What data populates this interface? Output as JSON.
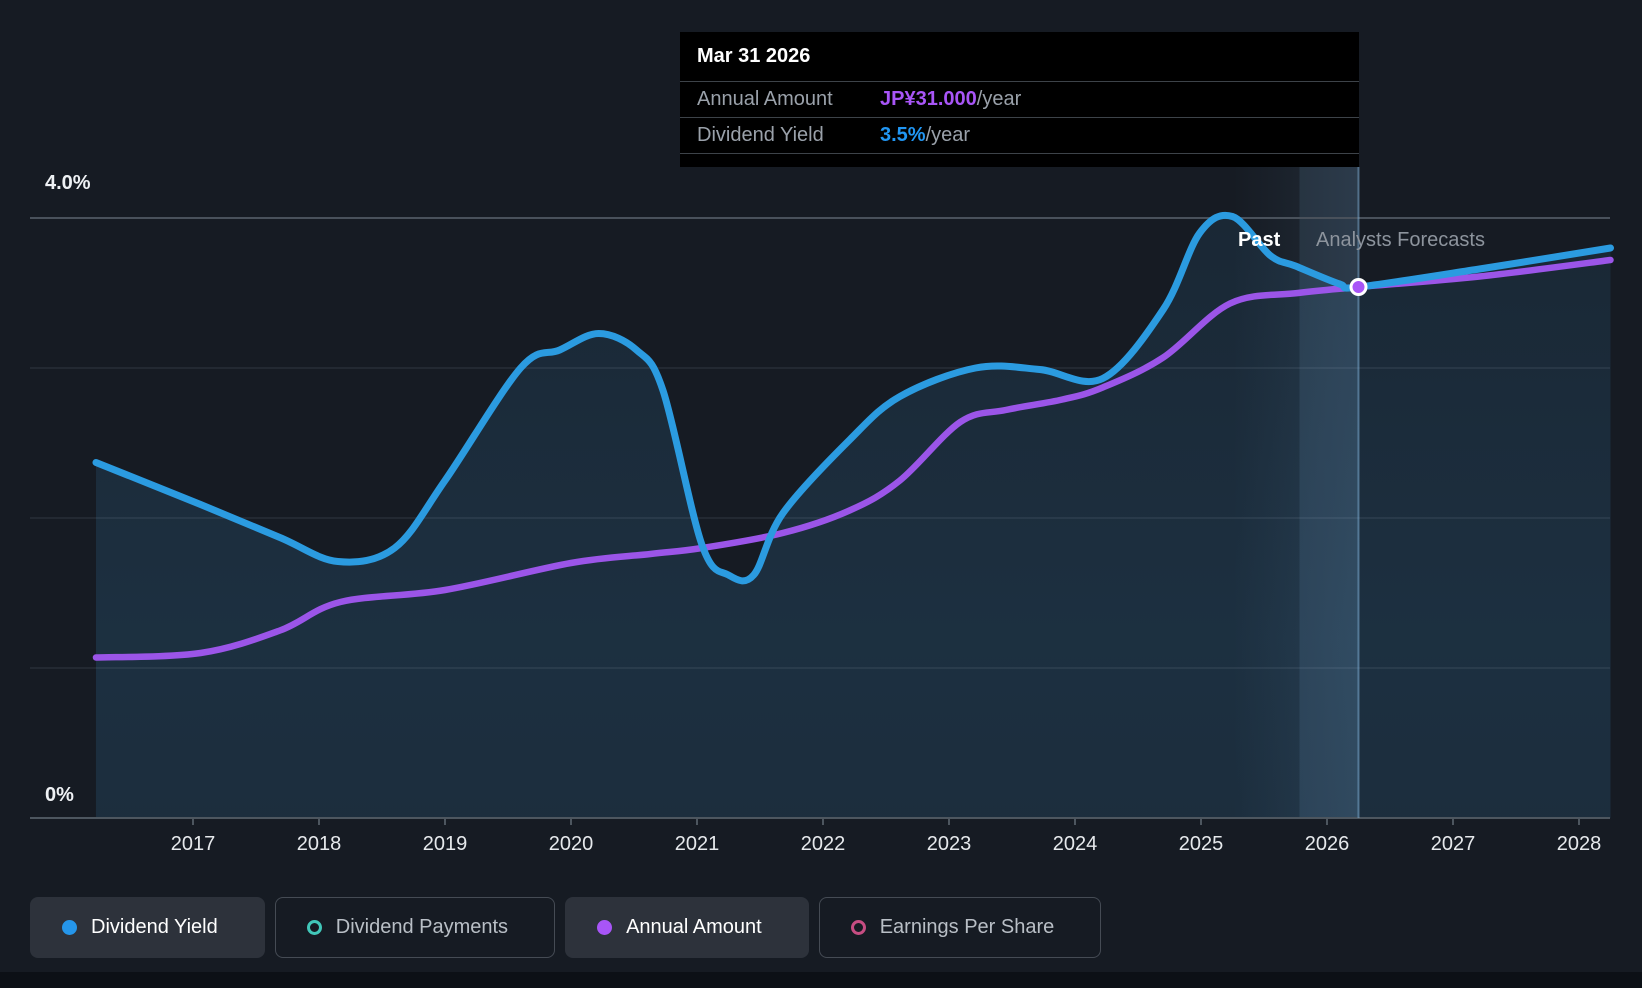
{
  "page": {
    "background": "#161b23"
  },
  "tooltip": {
    "title": "Mar 31 2026",
    "rows": [
      {
        "label": "Annual Amount",
        "value": "JP¥31.000",
        "suffix": "/year",
        "color": "#a855f7"
      },
      {
        "label": "Dividend Yield",
        "value": "3.5%",
        "suffix": "/year",
        "color": "#2196f3"
      }
    ]
  },
  "annotations": {
    "past_label": "Past",
    "forecast_label": "Analysts Forecasts"
  },
  "legend": {
    "items": [
      {
        "label": "Dividend Yield",
        "color": "#2596ea",
        "style": "filled",
        "active": true
      },
      {
        "label": "Dividend Payments",
        "color": "#41c7b9",
        "style": "ring",
        "active": false
      },
      {
        "label": "Annual Amount",
        "color": "#a855f7",
        "style": "filled",
        "active": true
      },
      {
        "label": "Earnings Per Share",
        "color": "#c64d82",
        "style": "ring",
        "active": false
      }
    ]
  },
  "chart_data": {
    "type": "area",
    "x_ticks": [
      "2017",
      "2018",
      "2019",
      "2020",
      "2021",
      "2022",
      "2023",
      "2024",
      "2025",
      "2026",
      "2027",
      "2028"
    ],
    "x_range": [
      2016.23,
      2028.25
    ],
    "y_axis": {
      "min": 0,
      "max": 4,
      "unit": "%",
      "labeled_ticks": [
        {
          "pct": 4.0,
          "label": "4.0%"
        },
        {
          "pct": 0,
          "label": "0%"
        }
      ],
      "gridlines_pct": [
        4,
        3,
        2,
        1
      ]
    },
    "grid": true,
    "legend_position": "bottom",
    "past_forecast_split_year": 2026.25,
    "highlight_band": {
      "start_year": 2025.25,
      "end_year": 2026.25
    },
    "marker": {
      "date": "Mar 31 2026",
      "x_year": 2026.25,
      "yield_pct": 3.54,
      "annual_amount": "JP¥31.000",
      "fill": "#a855f7"
    },
    "divider_color": "rgba(130,180,220,0.5)",
    "series": [
      {
        "name": "Dividend Yield",
        "color": "#2b9be0",
        "type": "area-line",
        "unit": "%",
        "points": [
          [
            2016.23,
            2.37
          ],
          [
            2017.06,
            2.09
          ],
          [
            2017.69,
            1.87
          ],
          [
            2018.15,
            1.71
          ],
          [
            2018.6,
            1.8
          ],
          [
            2019.0,
            2.25
          ],
          [
            2019.6,
            3.0
          ],
          [
            2019.91,
            3.12
          ],
          [
            2020.22,
            3.23
          ],
          [
            2020.52,
            3.12
          ],
          [
            2020.73,
            2.85
          ],
          [
            2021.04,
            1.82
          ],
          [
            2021.25,
            1.62
          ],
          [
            2021.45,
            1.62
          ],
          [
            2021.68,
            2.03
          ],
          [
            2022.21,
            2.52
          ],
          [
            2022.61,
            2.81
          ],
          [
            2023.21,
            3.0
          ],
          [
            2023.72,
            2.99
          ],
          [
            2024.22,
            2.93
          ],
          [
            2024.7,
            3.39
          ],
          [
            2024.99,
            3.9
          ],
          [
            2025.25,
            4.01
          ],
          [
            2025.55,
            3.75
          ],
          [
            2025.75,
            3.68
          ],
          [
            2026.1,
            3.56
          ],
          [
            2026.25,
            3.54
          ],
          [
            2027.21,
            3.66
          ],
          [
            2028.25,
            3.8
          ]
        ]
      },
      {
        "name": "Annual Amount",
        "color": "#9b55e8",
        "type": "line",
        "unit": "yield-equivalent %",
        "points": [
          [
            2016.23,
            1.07
          ],
          [
            2017.06,
            1.1
          ],
          [
            2017.69,
            1.25
          ],
          [
            2018.17,
            1.44
          ],
          [
            2019.0,
            1.52
          ],
          [
            2020.0,
            1.7
          ],
          [
            2020.63,
            1.76
          ],
          [
            2021.04,
            1.8
          ],
          [
            2021.68,
            1.9
          ],
          [
            2022.21,
            2.05
          ],
          [
            2022.61,
            2.25
          ],
          [
            2023.09,
            2.64
          ],
          [
            2023.45,
            2.72
          ],
          [
            2023.9,
            2.79
          ],
          [
            2024.22,
            2.87
          ],
          [
            2024.7,
            3.07
          ],
          [
            2025.23,
            3.43
          ],
          [
            2025.77,
            3.5
          ],
          [
            2026.25,
            3.54
          ],
          [
            2027.21,
            3.61
          ],
          [
            2028.25,
            3.72
          ]
        ]
      },
      {
        "name": "Dividend Payments",
        "color": "#41c7b9",
        "type": "legend-only"
      },
      {
        "name": "Earnings Per Share",
        "color": "#c64d82",
        "type": "legend-only"
      }
    ]
  }
}
